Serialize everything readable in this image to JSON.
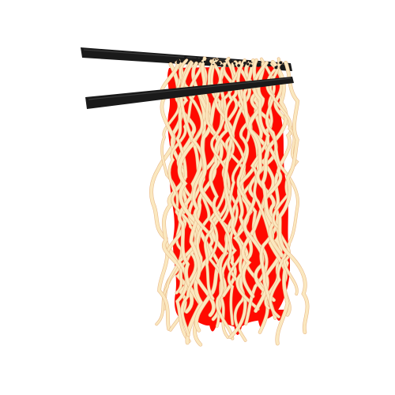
{
  "illustration": {
    "subject": "noodles-held-by-chopsticks",
    "colors": {
      "background": "#ffffff",
      "sauce_red": "#ff0a00",
      "noodle_cream": "#fbe8bf",
      "noodle_outline": "#e8b98a",
      "chopstick": "#1a1a1a",
      "chopstick_highlight": "#3a3a3a"
    },
    "chopstick_count": 2,
    "noodle_strand_count": 34
  }
}
